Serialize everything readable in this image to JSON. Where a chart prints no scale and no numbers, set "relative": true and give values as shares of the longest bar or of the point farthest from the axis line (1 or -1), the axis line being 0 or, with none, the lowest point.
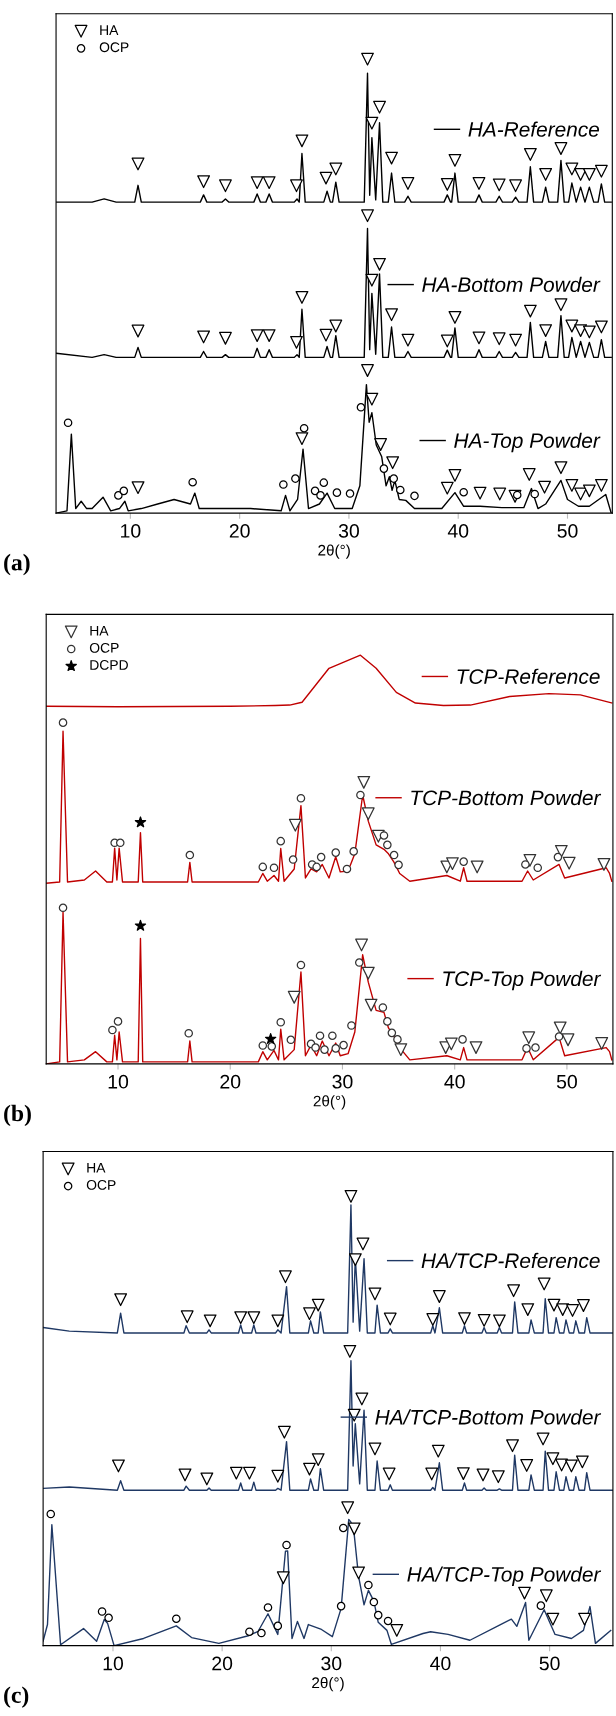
{
  "chart_data": [
    {
      "type": "line",
      "relative": true,
      "xlabel": "2θ(°)",
      "xlim": [
        3.2,
        54.1
      ],
      "xticks": [
        10,
        20,
        30,
        40,
        50
      ],
      "legend": "top left",
      "annotations": [
        "(a)"
      ],
      "x": [
        3.2,
        6.5,
        7.6,
        8.7,
        10.4,
        10.7,
        11.0,
        16.4,
        16.7,
        17.0,
        18.4,
        18.7,
        19.0,
        21.3,
        21.6,
        21.9,
        22.4,
        22.7,
        23.0,
        25.0,
        25.25,
        25.45,
        25.7,
        26.0,
        27.7,
        28.0,
        28.3,
        28.5,
        28.8,
        29.1,
        31.4,
        31.7,
        31.9,
        32.1,
        32.45,
        32.8,
        33.1,
        33.6,
        33.9,
        34.2,
        35.1,
        35.4,
        35.7,
        38.7,
        39.0,
        39.3,
        39.4,
        39.7,
        40.0,
        41.6,
        41.9,
        42.2,
        43.45,
        43.75,
        44.05,
        44.95,
        45.25,
        45.55,
        46.3,
        46.6,
        46.9,
        47.7,
        48.0,
        48.3,
        49.1,
        49.4,
        49.7,
        50.1,
        50.4,
        50.8,
        51.2,
        51.6,
        52.0,
        52.4,
        52.8,
        53.1,
        53.4,
        54.0
      ],
      "series": [
        {
          "name": "HA-Reference",
          "color": "#000000",
          "values": [
            0.685,
            0.685,
            0.692,
            0.685,
            0.685,
            0.722,
            0.685,
            0.685,
            0.701,
            0.685,
            0.685,
            0.692,
            0.685,
            0.685,
            0.703,
            0.685,
            0.685,
            0.703,
            0.685,
            0.685,
            0.692,
            0.685,
            0.792,
            0.685,
            0.685,
            0.709,
            0.685,
            0.685,
            0.729,
            0.685,
            0.685,
            0.969,
            0.7,
            0.827,
            0.69,
            0.86,
            0.685,
            0.685,
            0.749,
            0.685,
            0.685,
            0.698,
            0.685,
            0.685,
            0.701,
            0.685,
            0.685,
            0.749,
            0.685,
            0.685,
            0.701,
            0.685,
            0.685,
            0.698,
            0.685,
            0.685,
            0.696,
            0.685,
            0.685,
            0.763,
            0.685,
            0.685,
            0.718,
            0.685,
            0.685,
            0.777,
            0.685,
            0.685,
            0.727,
            0.685,
            0.718,
            0.685,
            0.718,
            0.685,
            0.685,
            0.725,
            0.685,
            0.685
          ]
        },
        {
          "name": "HA-Bottom Powder",
          "color": "#000000",
          "values": [
            0.352,
            0.343,
            0.349,
            0.343,
            0.343,
            0.365,
            0.343,
            0.343,
            0.356,
            0.343,
            0.343,
            0.349,
            0.343,
            0.343,
            0.363,
            0.343,
            0.343,
            0.36,
            0.343,
            0.343,
            0.349,
            0.343,
            0.449,
            0.343,
            0.343,
            0.367,
            0.343,
            0.343,
            0.391,
            0.343,
            0.343,
            0.627,
            0.36,
            0.484,
            0.35,
            0.527,
            0.343,
            0.343,
            0.41,
            0.343,
            0.343,
            0.356,
            0.343,
            0.343,
            0.359,
            0.343,
            0.343,
            0.408,
            0.343,
            0.343,
            0.36,
            0.343,
            0.343,
            0.356,
            0.343,
            0.343,
            0.354,
            0.343,
            0.343,
            0.42,
            0.343,
            0.343,
            0.378,
            0.343,
            0.343,
            0.435,
            0.343,
            0.343,
            0.387,
            0.343,
            0.378,
            0.343,
            0.376,
            0.343,
            0.343,
            0.382,
            0.343,
            0.343
          ]
        },
        {
          "name": "HA-Top Powder",
          "color": "#000000",
          "x": [
            3.2,
            4.2,
            4.6,
            5.0,
            5.5,
            6.0,
            6.5,
            7.5,
            8.2,
            9.0,
            9.5,
            9.8,
            11,
            12.5,
            14,
            15.5,
            15.9,
            16.3,
            18,
            21,
            23.8,
            24.2,
            24.6,
            25.3,
            25.8,
            26.3,
            27.3,
            28,
            28.7,
            30.3,
            31.0,
            31.6,
            31.85,
            32.1,
            32.5,
            33.0,
            33.4,
            33.7,
            33.95,
            34.2,
            34.6,
            35.2,
            36,
            38.5,
            39.7,
            40.5,
            42,
            44,
            46,
            46.7,
            47.3,
            48,
            49.4,
            50,
            51,
            52,
            53.5,
            54
          ],
          "values": [
            0,
            0.005,
            0.174,
            0.01,
            0.026,
            0.01,
            0.01,
            0.035,
            0.005,
            0.01,
            0.026,
            0.005,
            0.01,
            0.02,
            0.03,
            0.02,
            0.044,
            0.01,
            0.01,
            0.01,
            0.005,
            0.039,
            0.005,
            0.03,
            0.141,
            0.01,
            0.02,
            0.044,
            0.01,
            0.01,
            0.06,
            0.283,
            0.2,
            0.221,
            0.15,
            0.124,
            0.06,
            0.08,
            0.05,
            0.072,
            0.03,
            0.028,
            0.01,
            0.01,
            0.045,
            0.015,
            0.015,
            0.012,
            0.012,
            0.054,
            0.01,
            0.02,
            0.072,
            0.03,
            0.015,
            0.015,
            0.041,
            0
          ]
        },
        {
          "name": "HA",
          "type": "scatter",
          "marker": "triangle",
          "color": "#000000",
          "x": [
            10.7,
            16.7,
            18.7,
            21.6,
            22.7,
            25.2,
            25.7,
            27.9,
            28.8,
            31.7,
            32.1,
            32.8,
            33.9,
            35.4,
            39.0,
            39.7,
            41.9,
            43.75,
            45.25,
            46.6,
            48.0,
            49.4,
            50.4,
            51.2,
            52.0,
            53.1,
            10.7,
            16.7,
            18.7,
            21.6,
            22.7,
            25.2,
            25.7,
            27.9,
            28.8,
            31.7,
            32.1,
            32.8,
            33.9,
            35.4,
            39.0,
            39.7,
            41.9,
            43.75,
            45.25,
            46.6,
            48.0,
            49.4,
            50.4,
            51.2,
            52.0,
            53.1,
            10.7,
            25.7,
            31.7,
            32.1,
            32.9,
            34.0,
            39.0,
            39.7,
            42.0,
            43.8,
            45.2,
            46.5,
            47.9,
            49.4,
            50.4,
            51.2,
            52.0,
            53.1
          ],
          "values": [
            0.769,
            0.73,
            0.721,
            0.728,
            0.728,
            0.721,
            0.82,
            0.738,
            0.758,
            1.0,
            0.859,
            0.894,
            0.782,
            0.726,
            0.724,
            0.777,
            0.726,
            0.723,
            0.721,
            0.79,
            0.746,
            0.803,
            0.758,
            0.746,
            0.746,
            0.753,
            0.401,
            0.388,
            0.385,
            0.391,
            0.391,
            0.376,
            0.475,
            0.392,
            0.412,
            0.655,
            0.513,
            0.548,
            0.437,
            0.381,
            0.379,
            0.431,
            0.386,
            0.384,
            0.381,
            0.445,
            0.402,
            0.459,
            0.412,
            0.402,
            0.399,
            0.41,
            0.056,
            0.164,
            0.314,
            0.251,
            0.151,
            0.111,
            0.055,
            0.083,
            0.044,
            0.042,
            0.037,
            0.085,
            0.057,
            0.1,
            0.061,
            0.042,
            0.049,
            0.061
          ]
        },
        {
          "name": "OCP",
          "type": "scatter",
          "marker": "circle",
          "color": "#000000",
          "x": [
            4.3,
            8.9,
            9.4,
            15.7,
            24.0,
            25.1,
            25.9,
            26.9,
            27.4,
            27.7,
            28.9,
            30.1,
            31.1,
            33.2,
            34.1,
            34.7,
            36.0,
            40.5,
            45.4,
            47.0
          ],
          "values": [
            0.199,
            0.039,
            0.049,
            0.068,
            0.063,
            0.076,
            0.187,
            0.049,
            0.039,
            0.067,
            0.045,
            0.043,
            0.233,
            0.098,
            0.076,
            0.051,
            0.038,
            0.046,
            0.04,
            0.042
          ]
        }
      ]
    },
    {
      "type": "line",
      "relative": true,
      "xlabel": "2θ(°)",
      "xlim": [
        3.6,
        54.1
      ],
      "xticks": [
        10,
        20,
        30,
        40,
        50
      ],
      "legend": "top left",
      "annotations": [
        "(b)"
      ],
      "x": [
        3.6,
        4.8,
        5.1,
        5.5,
        7,
        8,
        9,
        9.5,
        9.7,
        9.9,
        10.1,
        10.4,
        11.8,
        12.0,
        12.2,
        16.2,
        16.4,
        16.6,
        22.5,
        22.9,
        23.3,
        23.9,
        24.3,
        24.5,
        24.8,
        25.7,
        26.3,
        26.7,
        27.2,
        27.7,
        28.2,
        28.8,
        29.4,
        29.8,
        30.5,
        31.1,
        31.8,
        32.3,
        33.0,
        33.7,
        34.1,
        34.6,
        35.1,
        36,
        39.3,
        40.5,
        40.8,
        41.1,
        46,
        46.5,
        47,
        49.3,
        49.8,
        53.5,
        53.8,
        54
      ],
      "series": [
        {
          "name": "TCP-Reference",
          "color": "#c00000",
          "x": [
            3.6,
            10,
            20,
            24,
            25.3,
            26.4,
            28.8,
            31.6,
            33,
            34.8,
            36.5,
            39,
            41.4,
            44.9,
            48.4,
            51.2,
            54
          ],
          "values": [
            0.875,
            0.874,
            0.875,
            0.877,
            0.878,
            0.885,
            0.968,
            1.0,
            0.968,
            0.909,
            0.883,
            0.877,
            0.878,
            0.899,
            0.906,
            0.903,
            0.883
          ]
        },
        {
          "name": "TCP-Bottom Powder",
          "color": "#c00000",
          "values": [
            0.442,
            0.445,
            0.814,
            0.445,
            0.45,
            0.472,
            0.445,
            0.445,
            0.528,
            0.45,
            0.528,
            0.445,
            0.445,
            0.566,
            0.445,
            0.445,
            0.493,
            0.445,
            0.445,
            0.466,
            0.447,
            0.461,
            0.447,
            0.527,
            0.447,
            0.477,
            0.632,
            0.455,
            0.477,
            0.47,
            0.488,
            0.455,
            0.507,
            0.47,
            0.472,
            0.514,
            0.658,
            0.594,
            0.536,
            0.525,
            0.514,
            0.493,
            0.466,
            0.447,
            0.461,
            0.447,
            0.48,
            0.447,
            0.447,
            0.472,
            0.45,
            0.488,
            0.455,
            0.48,
            0.466,
            0.447
          ]
        },
        {
          "name": "TCP-Top Powder",
          "color": "#c00000",
          "values": [
            0,
            0.005,
            0.371,
            0.005,
            0.01,
            0.03,
            0.005,
            0.005,
            0.07,
            0.01,
            0.078,
            0.005,
            0.005,
            0.307,
            0.005,
            0.005,
            0.056,
            0.005,
            0.005,
            0.03,
            0.01,
            0.033,
            0.01,
            0.085,
            0.01,
            0.035,
            0.225,
            0.02,
            0.046,
            0.02,
            0.056,
            0.02,
            0.051,
            0.02,
            0.025,
            0.078,
            0.267,
            0.2,
            0.131,
            0.126,
            0.088,
            0.067,
            0.04,
            0.01,
            0.02,
            0.01,
            0.04,
            0.01,
            0.01,
            0.04,
            0.01,
            0.065,
            0.02,
            0.04,
            0.03,
            0.01
          ]
        },
        {
          "name": "HA",
          "type": "scatter",
          "marker": "triangle",
          "color": "#333333",
          "x": [
            25.8,
            31.9,
            32.3,
            33.2,
            39.3,
            39.8,
            42.0,
            46.7,
            49.5,
            50.2,
            53.3,
            25.7,
            31.7,
            32.3,
            32.55,
            35.2,
            39.2,
            39.7,
            41.9,
            46.6,
            49.4,
            50.1,
            53.1
          ],
          "values": [
            0.584,
            0.689,
            0.612,
            0.557,
            0.482,
            0.49,
            0.482,
            0.498,
            0.52,
            0.491,
            0.488,
            0.163,
            0.291,
            0.222,
            0.144,
            0.035,
            0.04,
            0.049,
            0.04,
            0.064,
            0.088,
            0.059,
            0.05
          ]
        },
        {
          "name": "OCP",
          "type": "scatter",
          "marker": "circle",
          "color": "#333333",
          "x": [
            5.1,
            9.7,
            10.2,
            16.4,
            22.9,
            23.9,
            24.5,
            25.6,
            26.3,
            27.3,
            27.7,
            28.1,
            29.4,
            30.4,
            31.0,
            31.6,
            33.7,
            34.0,
            34.6,
            35.0,
            40.8,
            46.3,
            47.4,
            49.2,
            5.1,
            9.5,
            10.0,
            16.3,
            22.9,
            23.7,
            24.5,
            25.4,
            26.3,
            27.2,
            27.6,
            28.0,
            28.4,
            29.1,
            29.4,
            30.1,
            30.8,
            31.5,
            33.6,
            34.0,
            34.4,
            34.9,
            40.7,
            46.4,
            47.2,
            49.3
          ],
          "values": [
            0.835,
            0.541,
            0.541,
            0.511,
            0.482,
            0.48,
            0.545,
            0.5,
            0.65,
            0.488,
            0.482,
            0.506,
            0.517,
            0.477,
            0.52,
            0.658,
            0.559,
            0.536,
            0.511,
            0.487,
            0.495,
            0.488,
            0.48,
            0.506,
            0.382,
            0.083,
            0.104,
            0.075,
            0.045,
            0.043,
            0.102,
            0.059,
            0.242,
            0.049,
            0.04,
            0.069,
            0.035,
            0.069,
            0.038,
            0.046,
            0.094,
            0.248,
            0.138,
            0.104,
            0.076,
            0.06,
            0.06,
            0.038,
            0.04,
            0.067
          ]
        },
        {
          "name": "DCPD",
          "type": "scatter",
          "marker": "star",
          "color": "#000000",
          "x": [
            12.0,
            12.0,
            23.6
          ],
          "values": [
            0.591,
            0.338,
            0.061
          ]
        }
      ]
    },
    {
      "type": "line",
      "relative": true,
      "xlabel": "2θ(°)",
      "xlim": [
        3.6,
        55.8
      ],
      "xticks": [
        10,
        20,
        30,
        40,
        50
      ],
      "legend": "top left",
      "annotations": [
        "(c)"
      ],
      "x": [
        3.6,
        6,
        10.4,
        10.7,
        11.0,
        16.5,
        16.7,
        17.0,
        18.6,
        18.8,
        19.0,
        21.5,
        21.7,
        21.9,
        22.7,
        22.9,
        23.1,
        24.9,
        25.1,
        25.4,
        25.9,
        26.2,
        27.9,
        28.1,
        28.4,
        28.8,
        29.0,
        29.3,
        31.5,
        31.8,
        32.0,
        32.2,
        32.6,
        33.0,
        33.3,
        34.0,
        34.2,
        34.5,
        35.2,
        35.4,
        35.6,
        39.1,
        39.3,
        39.5,
        39.9,
        40.2,
        42.0,
        42.2,
        42.4,
        43.8,
        44.0,
        44.2,
        45.2,
        45.4,
        45.6,
        46.6,
        46.8,
        47.1,
        48.1,
        48.3,
        48.6,
        49.4,
        49.6,
        49.9,
        50.4,
        50.6,
        50.9,
        51.3,
        51.5,
        51.8,
        52.2,
        52.4,
        52.7,
        53.2,
        53.4,
        53.7,
        55.8
      ],
      "series": [
        {
          "name": "HA/TCP-Reference",
          "color": "#1f3864",
          "values": [
            0.708,
            0.7,
            0.696,
            0.74,
            0.696,
            0.696,
            0.712,
            0.696,
            0.696,
            0.703,
            0.696,
            0.696,
            0.714,
            0.696,
            0.696,
            0.714,
            0.696,
            0.696,
            0.703,
            0.696,
            0.799,
            0.696,
            0.696,
            0.723,
            0.696,
            0.696,
            0.743,
            0.696,
            0.696,
            0.981,
            0.72,
            0.863,
            0.7,
            0.861,
            0.696,
            0.696,
            0.758,
            0.696,
            0.696,
            0.705,
            0.696,
            0.696,
            0.712,
            0.696,
            0.752,
            0.696,
            0.696,
            0.712,
            0.696,
            0.696,
            0.708,
            0.696,
            0.696,
            0.708,
            0.696,
            0.696,
            0.765,
            0.696,
            0.696,
            0.725,
            0.696,
            0.696,
            0.772,
            0.696,
            0.696,
            0.73,
            0.696,
            0.696,
            0.725,
            0.696,
            0.696,
            0.723,
            0.696,
            0.696,
            0.73,
            0.696,
            0.696
          ]
        },
        {
          "name": "HA/TCP-Bottom Powder",
          "color": "#1f3864",
          "values": [
            0.35,
            0.353,
            0.346,
            0.367,
            0.346,
            0.346,
            0.355,
            0.346,
            0.346,
            0.351,
            0.346,
            0.346,
            0.362,
            0.346,
            0.346,
            0.364,
            0.346,
            0.346,
            0.35,
            0.346,
            0.454,
            0.346,
            0.346,
            0.371,
            0.346,
            0.346,
            0.394,
            0.346,
            0.346,
            0.634,
            0.4,
            0.494,
            0.36,
            0.524,
            0.346,
            0.346,
            0.411,
            0.346,
            0.346,
            0.358,
            0.346,
            0.346,
            0.352,
            0.346,
            0.407,
            0.346,
            0.346,
            0.362,
            0.346,
            0.346,
            0.351,
            0.346,
            0.346,
            0.349,
            0.346,
            0.346,
            0.424,
            0.346,
            0.346,
            0.38,
            0.346,
            0.346,
            0.433,
            0.346,
            0.346,
            0.387,
            0.346,
            0.346,
            0.376,
            0.346,
            0.346,
            0.376,
            0.346,
            0.346,
            0.385,
            0.346,
            0.346
          ]
        },
        {
          "name": "HA/TCP-Top Powder",
          "color": "#1f3864",
          "x": [
            3.6,
            4.0,
            4.4,
            5.2,
            7.3,
            8.5,
            9.2,
            9.5,
            10.1,
            12.8,
            15.8,
            17.2,
            19.7,
            22.4,
            23.3,
            24.2,
            25.1,
            25.8,
            26.0,
            26.4,
            26.9,
            27.5,
            27.9,
            29.1,
            30.1,
            30.9,
            31.6,
            31.8,
            32.1,
            32.5,
            33.0,
            33.4,
            33.9,
            34.3,
            35.1,
            35.5,
            38.4,
            39.1,
            40.7,
            42.7,
            45.5,
            46.5,
            47.0,
            47.8,
            48.1,
            49.5,
            50.5,
            52.0,
            53.1,
            53.7,
            54.2,
            55.6
          ],
          "values": [
            0.01,
            0.047,
            0.269,
            0.002,
            0.038,
            0.01,
            0.058,
            0.05,
            0,
            0.016,
            0.044,
            0.018,
            0.005,
            0.022,
            0.032,
            0.071,
            0.025,
            0.21,
            0.211,
            0.016,
            0.054,
            0.016,
            0.047,
            0.036,
            0.02,
            0.083,
            0.281,
            0.275,
            0.247,
            0.154,
            0.091,
            0.123,
            0.099,
            0.052,
            0.034,
            0.003,
            0.027,
            0.031,
            0.025,
            0.012,
            0.047,
            0.059,
            0.043,
            0.096,
            0.012,
            0.08,
            0.025,
            0.016,
            0.034,
            0.087,
            0.005,
            0.034
          ]
        },
        {
          "name": "HA",
          "type": "scatter",
          "marker": "triangle",
          "color": "#000000",
          "x": [
            10.7,
            16.8,
            18.9,
            21.7,
            22.9,
            25.1,
            25.8,
            28.0,
            28.8,
            31.8,
            32.2,
            32.9,
            34.0,
            35.4,
            39.3,
            39.9,
            42.2,
            44.0,
            45.4,
            46.7,
            48.0,
            49.5,
            50.4,
            51.2,
            52.1,
            53.1,
            10.5,
            16.6,
            18.6,
            21.3,
            22.5,
            25.1,
            25.7,
            28.0,
            28.8,
            31.7,
            32.1,
            32.8,
            34.0,
            35.3,
            39.2,
            39.8,
            42.1,
            43.9,
            45.3,
            46.6,
            47.9,
            49.4,
            50.3,
            51.1,
            52.0,
            53.0,
            25.6,
            31.5,
            32.1,
            32.5,
            36.0,
            47.7,
            49.7,
            50.3,
            53.2
          ],
          "values": [
            0.77,
            0.732,
            0.723,
            0.73,
            0.73,
            0.723,
            0.821,
            0.739,
            0.758,
            1.0,
            0.859,
            0.894,
            0.783,
            0.727,
            0.726,
            0.777,
            0.728,
            0.724,
            0.723,
            0.79,
            0.748,
            0.805,
            0.758,
            0.748,
            0.746,
            0.757,
            0.4,
            0.38,
            0.371,
            0.384,
            0.384,
            0.377,
            0.475,
            0.393,
            0.414,
            0.655,
            0.513,
            0.549,
            0.438,
            0.382,
            0.382,
            0.433,
            0.383,
            0.38,
            0.376,
            0.445,
            0.401,
            0.46,
            0.416,
            0.402,
            0.4,
            0.409,
            0.151,
            0.307,
            0.26,
            0.162,
            0.034,
            0.117,
            0.111,
            0.059,
            0.059
          ]
        },
        {
          "name": "OCP",
          "type": "scatter",
          "marker": "circle",
          "color": "#000000",
          "x": [
            4.3,
            9.0,
            9.6,
            15.8,
            22.5,
            23.6,
            24.2,
            25.1,
            25.9,
            30.9,
            31.1,
            33.4,
            33.9,
            34.3,
            35.2,
            49.2
          ],
          "values": [
            0.293,
            0.076,
            0.062,
            0.06,
            0.031,
            0.028,
            0.085,
            0.044,
            0.224,
            0.088,
            0.262,
            0.135,
            0.097,
            0.068,
            0.055,
            0.089
          ]
        }
      ]
    }
  ]
}
